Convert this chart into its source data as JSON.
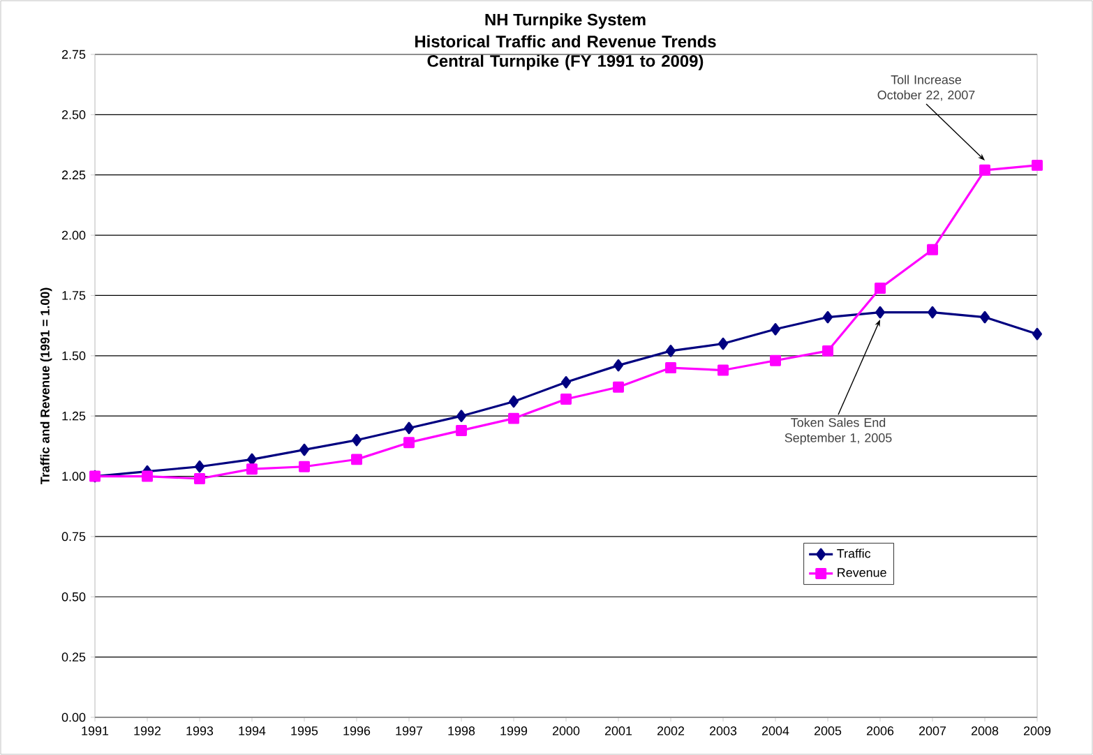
{
  "chart_data": {
    "type": "line",
    "title": "NH Turnpike System",
    "subtitle": "Historical Traffic and Revenue Trends Central Turnpike (FY 1991 to 2009)",
    "ylabel": "Traffic and Revenue (1991 = 1.00)",
    "categories": [
      "1991",
      "1992",
      "1993",
      "1994",
      "1995",
      "1996",
      "1997",
      "1998",
      "1999",
      "2000",
      "2001",
      "2002",
      "2003",
      "2004",
      "2005",
      "2006",
      "2007",
      "2008",
      "2009"
    ],
    "series": [
      {
        "name": "Traffic",
        "color": "#000080",
        "marker": "diamond",
        "values": [
          1.0,
          1.02,
          1.04,
          1.07,
          1.11,
          1.15,
          1.2,
          1.25,
          1.31,
          1.39,
          1.46,
          1.52,
          1.55,
          1.61,
          1.66,
          1.68,
          1.68,
          1.66,
          1.59
        ]
      },
      {
        "name": "Revenue",
        "color": "#ff00ff",
        "marker": "square",
        "values": [
          1.0,
          1.0,
          0.99,
          1.03,
          1.04,
          1.07,
          1.14,
          1.19,
          1.24,
          1.32,
          1.37,
          1.45,
          1.44,
          1.48,
          1.52,
          1.78,
          1.94,
          2.27,
          2.29
        ]
      }
    ],
    "ylim": [
      0,
      2.75
    ],
    "yticks": [
      {
        "value": 0,
        "label": "0.00"
      },
      {
        "value": 0.25,
        "label": "0.25"
      },
      {
        "value": 0.5,
        "label": "0.50"
      },
      {
        "value": 0.75,
        "label": "0.75"
      },
      {
        "value": 1,
        "label": "1.00"
      },
      {
        "value": 1.25,
        "label": "1.25"
      },
      {
        "value": 1.5,
        "label": "1.50"
      },
      {
        "value": 1.75,
        "label": "1.75"
      },
      {
        "value": 2,
        "label": "2.00"
      },
      {
        "value": 2.25,
        "label": "2.25"
      },
      {
        "value": 2.5,
        "label": "2.50"
      },
      {
        "value": 2.75,
        "label": "2.75"
      }
    ],
    "grid": "y",
    "legend": "bottom right",
    "annotations": [
      {
        "text": "Toll Increase October 22, 2007",
        "x": "2008",
        "y": 2.31
      },
      {
        "text": "Token Sales End September 1, 2005",
        "x": "2006",
        "y": 1.65
      }
    ]
  }
}
